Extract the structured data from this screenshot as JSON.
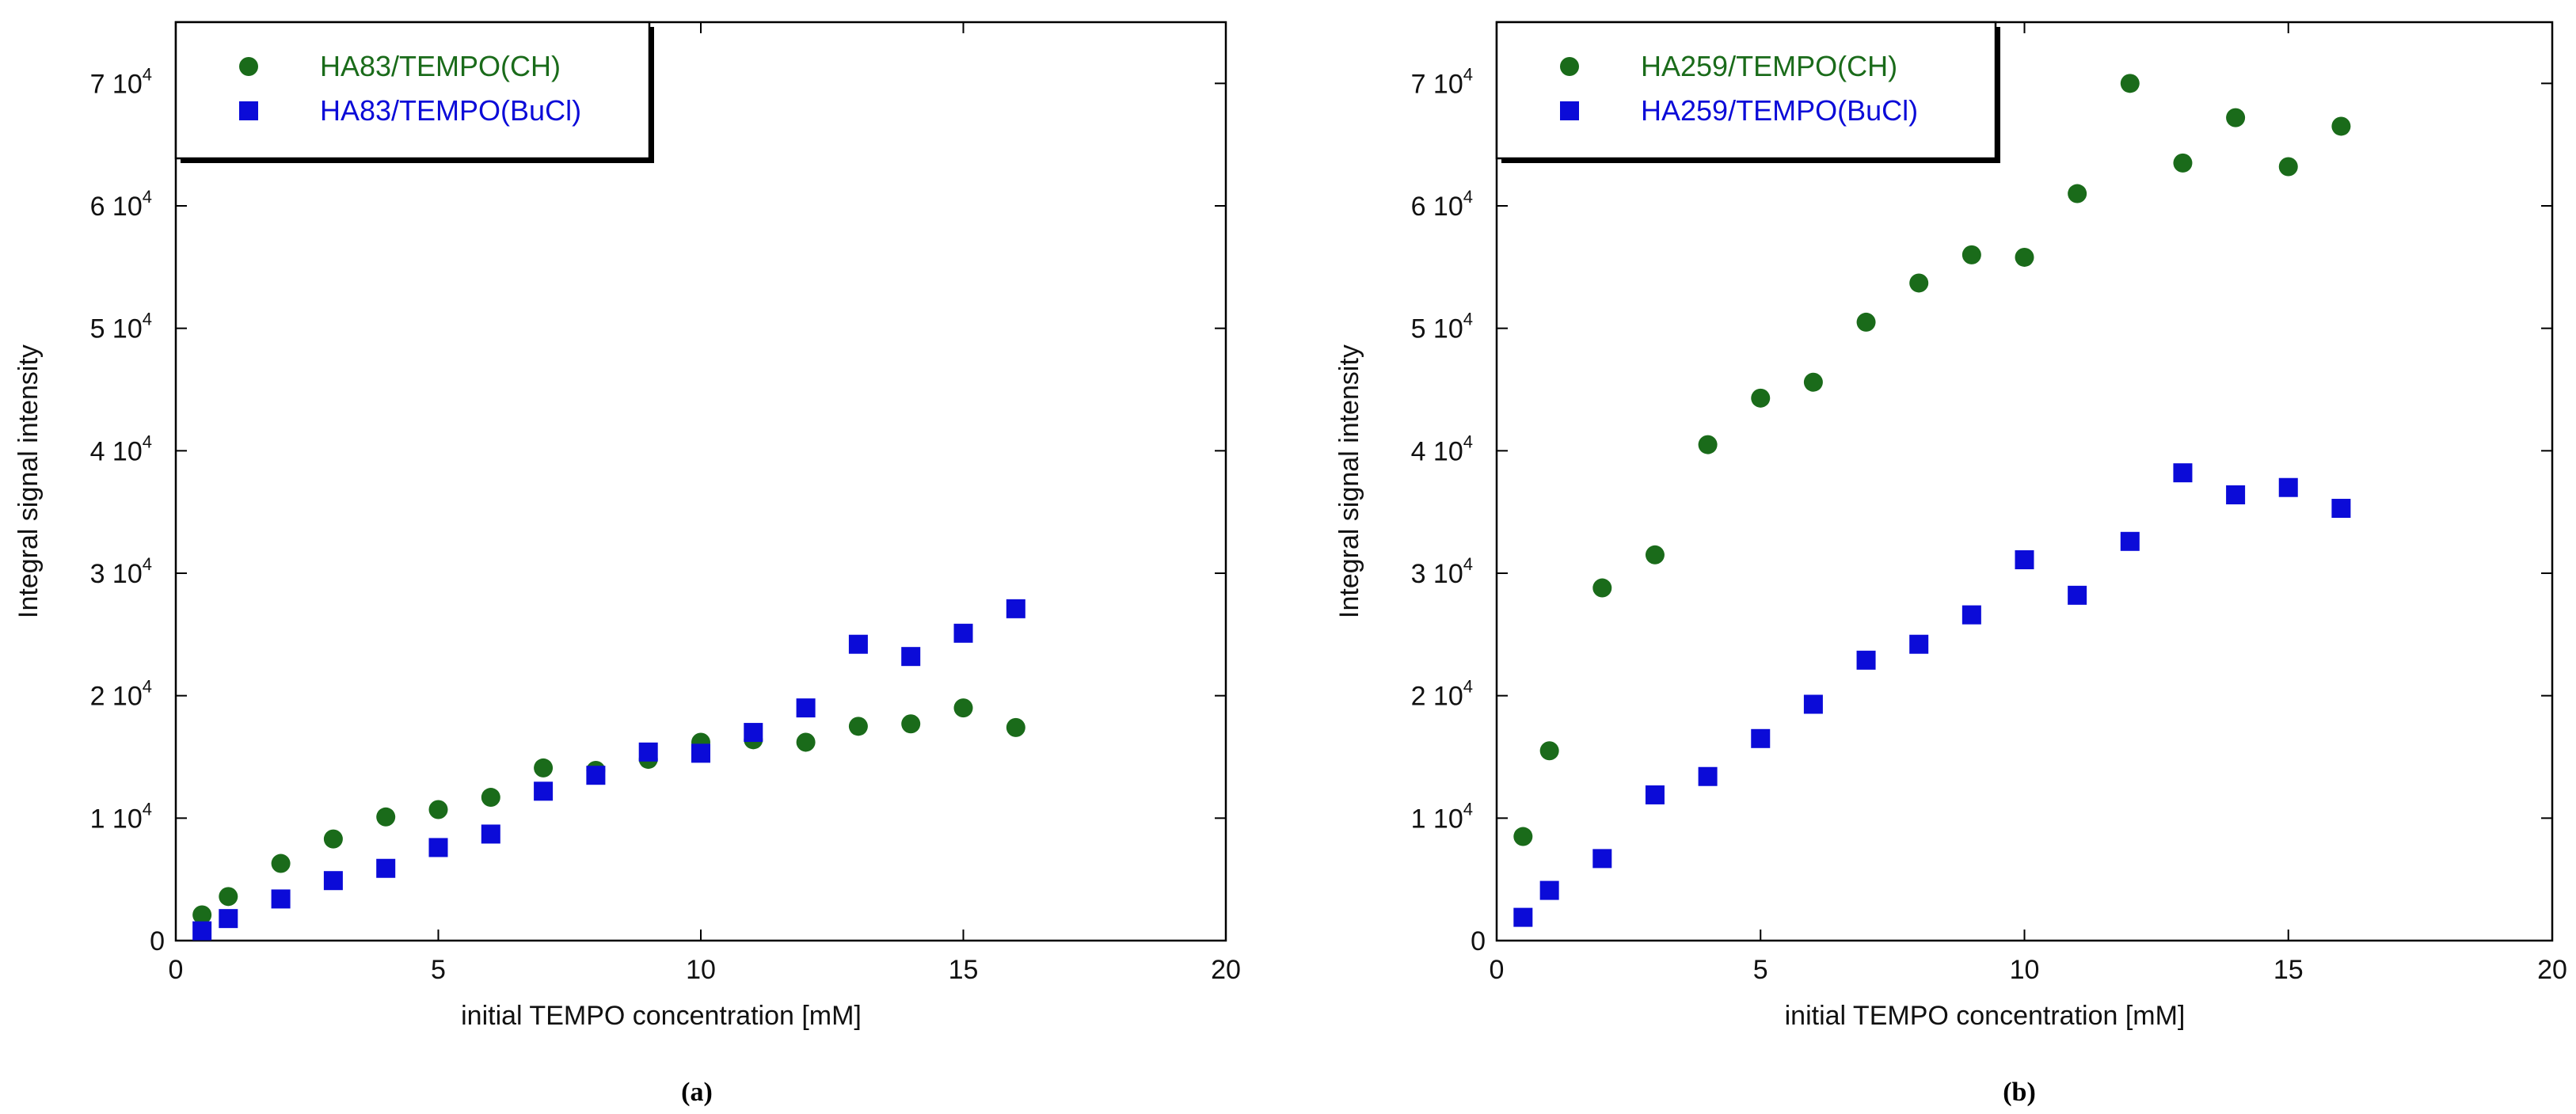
{
  "chart_data": [
    {
      "type": "scatter",
      "caption": "(a)",
      "xlabel": "initial TEMPO concentration [mM]",
      "ylabel": "Integral signal intensity",
      "xlim": [
        0,
        20
      ],
      "ylim": [
        0,
        75000
      ],
      "xticks": [
        "0",
        "5",
        "10",
        "15",
        "20"
      ],
      "yticks": [
        {
          "base": "0",
          "exp": ""
        },
        {
          "base": "1 10",
          "exp": "4"
        },
        {
          "base": "2 10",
          "exp": "4"
        },
        {
          "base": "3 10",
          "exp": "4"
        },
        {
          "base": "4 10",
          "exp": "4"
        },
        {
          "base": "5 10",
          "exp": "4"
        },
        {
          "base": "6 10",
          "exp": "4"
        },
        {
          "base": "7 10",
          "exp": "4"
        }
      ],
      "legend_position": "top-left",
      "series": [
        {
          "name": "HA83/TEMPO(CH)",
          "marker": "circle",
          "color": "#1a6b1a",
          "x": [
            0.5,
            1,
            2,
            3,
            4,
            5,
            6,
            7,
            8,
            9,
            10,
            11,
            12,
            13,
            14,
            15,
            16
          ],
          "y": [
            2100,
            3600,
            6300,
            8300,
            10100,
            10700,
            11700,
            14100,
            13900,
            14800,
            16200,
            16400,
            16200,
            17500,
            17700,
            19000,
            17400
          ]
        },
        {
          "name": "HA83/TEMPO(BuCl)",
          "marker": "square",
          "color": "#0b0bd8",
          "x": [
            0.5,
            1,
            2,
            3,
            4,
            5,
            6,
            7,
            8,
            9,
            10,
            11,
            12,
            13,
            14,
            15,
            16
          ],
          "y": [
            800,
            1800,
            3400,
            4900,
            5900,
            7600,
            8700,
            12200,
            13500,
            15400,
            15300,
            17000,
            19000,
            24200,
            23200,
            25100,
            27100
          ]
        }
      ]
    },
    {
      "type": "scatter",
      "caption": "(b)",
      "xlabel": "initial TEMPO concentration [mM]",
      "ylabel": "Integral signal intensity",
      "xlim": [
        0,
        20
      ],
      "ylim": [
        0,
        75000
      ],
      "xticks": [
        "0",
        "5",
        "10",
        "15",
        "20"
      ],
      "yticks": [
        {
          "base": "0",
          "exp": ""
        },
        {
          "base": "1 10",
          "exp": "4"
        },
        {
          "base": "2 10",
          "exp": "4"
        },
        {
          "base": "3 10",
          "exp": "4"
        },
        {
          "base": "4 10",
          "exp": "4"
        },
        {
          "base": "5 10",
          "exp": "4"
        },
        {
          "base": "6 10",
          "exp": "4"
        },
        {
          "base": "7 10",
          "exp": "4"
        }
      ],
      "legend_position": "top-left",
      "series": [
        {
          "name": "HA259/TEMPO(CH)",
          "marker": "circle",
          "color": "#1a6b1a",
          "x": [
            0.5,
            1,
            2,
            3,
            4,
            5,
            6,
            7,
            8,
            9,
            10,
            11,
            12,
            13,
            14,
            15,
            16
          ],
          "y": [
            8500,
            15500,
            28800,
            31500,
            40500,
            44300,
            45600,
            50500,
            53700,
            56000,
            55800,
            61000,
            70000,
            63500,
            67200,
            63200,
            66500
          ]
        },
        {
          "name": "HA259/TEMPO(BuCl)",
          "marker": "square",
          "color": "#0b0bd8",
          "x": [
            0.5,
            1,
            2,
            3,
            4,
            5,
            6,
            7,
            8,
            9,
            10,
            11,
            12,
            13,
            14,
            15,
            16
          ],
          "y": [
            1900,
            4100,
            6700,
            11900,
            13400,
            16500,
            19300,
            22900,
            24200,
            26600,
            31100,
            28200,
            32600,
            38200,
            36400,
            37000,
            35300
          ]
        }
      ]
    }
  ]
}
